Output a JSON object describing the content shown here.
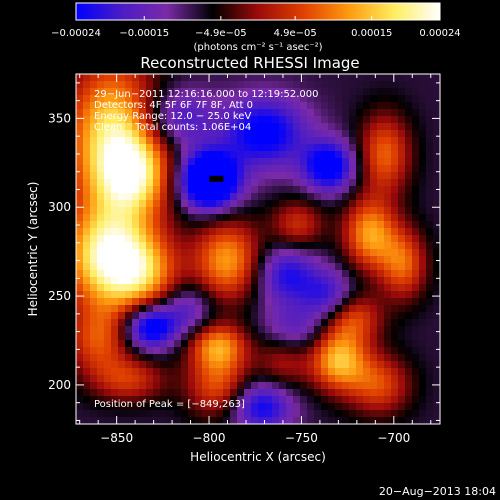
{
  "chart_data": {
    "type": "heatmap",
    "title": "Reconstructed RHESSI Image",
    "xlabel": "Heliocentric X (arcsec)",
    "ylabel": "Heliocentric Y (arcsec)",
    "xlim": [
      -872,
      -675
    ],
    "ylim": [
      178,
      375
    ],
    "x_ticks": [
      -850,
      -800,
      -750,
      -700
    ],
    "x_tick_labels": [
      "−850",
      "−800",
      "−750",
      "−700"
    ],
    "y_ticks": [
      200,
      250,
      300,
      350
    ],
    "y_tick_labels": [
      "200",
      "250",
      "300",
      "350"
    ],
    "colorbar": {
      "min": -0.00024,
      "max": 0.00024,
      "ticks": [
        -0.00024,
        -0.00015,
        -4.9e-05,
        4.9e-05,
        0.00015,
        0.00024
      ],
      "tick_labels": [
        "−0.00024",
        "−0.00015",
        "−4.9e−05",
        "4.9e−05",
        "0.00015",
        "0.00024"
      ],
      "unit_label": "(photons cm⁻² s⁻¹ asec⁻²)",
      "colors": [
        "#0000ff",
        "#4b1cc6",
        "#7a2aa8",
        "#000000",
        "#9c0a0a",
        "#e04000",
        "#ff9a10",
        "#ffee60",
        "#ffffff"
      ]
    },
    "annotations": [
      "29−Jun−2011 12:16:16.000 to 12:19:52.000",
      "Detectors: 4F 5F 6F 7F 8F, Att 0",
      "Energy Range: 12.0 − 25.0 keV",
      "Clean    Total counts: 1.06E+04"
    ],
    "peak_label": "Position of Peak = [−849,263]",
    "peak_marker": {
      "x": -796,
      "y": 316
    },
    "blobs": [
      {
        "x": -852,
        "y": 340,
        "sx": 18,
        "sy": 30,
        "v": 0.00026
      },
      {
        "x": -840,
        "y": 318,
        "sx": 14,
        "sy": 16,
        "v": 0.00018
      },
      {
        "x": -855,
        "y": 272,
        "sx": 17,
        "sy": 20,
        "v": 0.00028
      },
      {
        "x": -835,
        "y": 262,
        "sx": 14,
        "sy": 16,
        "v": 0.00016
      },
      {
        "x": -860,
        "y": 225,
        "sx": 12,
        "sy": 14,
        "v": 0.00014
      },
      {
        "x": -843,
        "y": 203,
        "sx": 14,
        "sy": 9,
        "v": 0.00012
      },
      {
        "x": -790,
        "y": 270,
        "sx": 13,
        "sy": 16,
        "v": 0.0002
      },
      {
        "x": -795,
        "y": 222,
        "sx": 11,
        "sy": 9,
        "v": 0.00018
      },
      {
        "x": -795,
        "y": 200,
        "sx": 12,
        "sy": 13,
        "v": 0.00015
      },
      {
        "x": -752,
        "y": 290,
        "sx": 10,
        "sy": 10,
        "v": 0.00012
      },
      {
        "x": -760,
        "y": 215,
        "sx": 10,
        "sy": 12,
        "v": 0.0001
      },
      {
        "x": -705,
        "y": 330,
        "sx": 10,
        "sy": 16,
        "v": 0.00016
      },
      {
        "x": -713,
        "y": 285,
        "sx": 10,
        "sy": 14,
        "v": 0.0002
      },
      {
        "x": -695,
        "y": 268,
        "sx": 9,
        "sy": 14,
        "v": 0.00016
      },
      {
        "x": -722,
        "y": 238,
        "sx": 11,
        "sy": 10,
        "v": 0.00014
      },
      {
        "x": -730,
        "y": 214,
        "sx": 11,
        "sy": 12,
        "v": 0.00022
      },
      {
        "x": -708,
        "y": 200,
        "sx": 12,
        "sy": 12,
        "v": 0.00014
      },
      {
        "x": -800,
        "y": 315,
        "sx": 11,
        "sy": 11,
        "v": -0.00033
      },
      {
        "x": -770,
        "y": 342,
        "sx": 16,
        "sy": 14,
        "v": -0.00018
      },
      {
        "x": -818,
        "y": 350,
        "sx": 14,
        "sy": 12,
        "v": -0.00012
      },
      {
        "x": -735,
        "y": 323,
        "sx": 10,
        "sy": 10,
        "v": -0.0002
      },
      {
        "x": -758,
        "y": 262,
        "sx": 12,
        "sy": 12,
        "v": -0.00014
      },
      {
        "x": -832,
        "y": 233,
        "sx": 10,
        "sy": 9,
        "v": -0.00022
      },
      {
        "x": -812,
        "y": 243,
        "sx": 10,
        "sy": 10,
        "v": -0.0001
      },
      {
        "x": -772,
        "y": 188,
        "sx": 12,
        "sy": 10,
        "v": -0.00016
      },
      {
        "x": -735,
        "y": 250,
        "sx": 10,
        "sy": 10,
        "v": -0.00012
      },
      {
        "x": -755,
        "y": 230,
        "sx": 12,
        "sy": 10,
        "v": -0.0001
      }
    ],
    "background_value": -8e-05
  },
  "footer": {
    "timestamp": "20−Aug−2013 18:04"
  }
}
